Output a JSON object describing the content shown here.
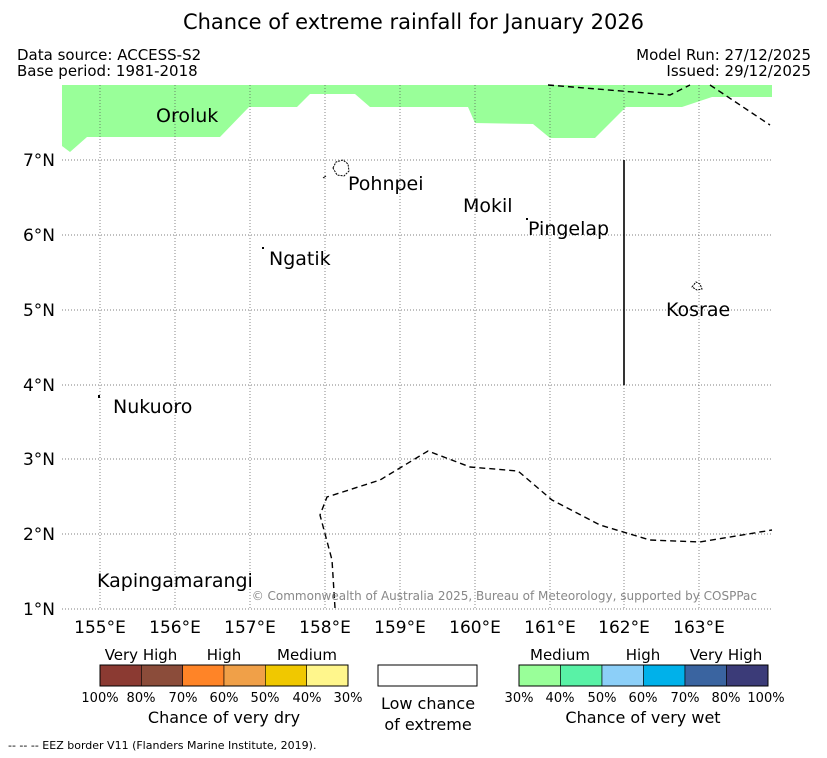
{
  "title": "Chance of extreme rainfall for January 2026",
  "meta": {
    "data_source": "Data source: ACCESS-S2",
    "base_period": "Base period: 1981-2018",
    "model_run": "Model Run: 27/12/2025",
    "issued": "Issued: 29/12/2025"
  },
  "map": {
    "lon_range": [
      154.5,
      164.0
    ],
    "lat_range": [
      1.0,
      8.0
    ],
    "lon_ticks": [
      "155°E",
      "156°E",
      "157°E",
      "158°E",
      "159°E",
      "160°E",
      "161°E",
      "162°E",
      "163°E"
    ],
    "lat_ticks": [
      "1°N",
      "2°N",
      "3°N",
      "4°N",
      "5°N",
      "6°N",
      "7°N"
    ],
    "places": [
      "Oroluk",
      "Pohnpei",
      "Mokil",
      "Pingelap",
      "Ngatik",
      "Kosrae",
      "Nukuoro",
      "Kapingamarangi"
    ],
    "copyright": "© Commonwealth of Australia 2025, Bureau of Meteorology, supported by COSPPac",
    "wet_band_color": "#99ff99"
  },
  "legend": {
    "dry": {
      "headers": [
        "Very High",
        "High",
        "Medium"
      ],
      "percents": [
        "100%",
        "80%",
        "70%",
        "60%",
        "50%",
        "40%",
        "30%"
      ],
      "colors": [
        "#8b3a32",
        "#8b4c3a",
        "#ff8427",
        "#f0a048",
        "#f0c800",
        "#fff68c"
      ],
      "caption": "Chance of very dry"
    },
    "low": {
      "line1": "Low chance",
      "line2": "of extreme"
    },
    "wet": {
      "headers": [
        "Medium",
        "High",
        "Very High"
      ],
      "percents": [
        "30%",
        "40%",
        "50%",
        "60%",
        "70%",
        "80%",
        "100%"
      ],
      "colors": [
        "#99ff99",
        "#59f2a6",
        "#8ccff8",
        "#00b1ea",
        "#3a64a0",
        "#3b3b78"
      ],
      "caption": "Chance of very wet"
    }
  },
  "footnote": "--  --  -- EEZ border V11 (Flanders Marine Institute, 2019)."
}
